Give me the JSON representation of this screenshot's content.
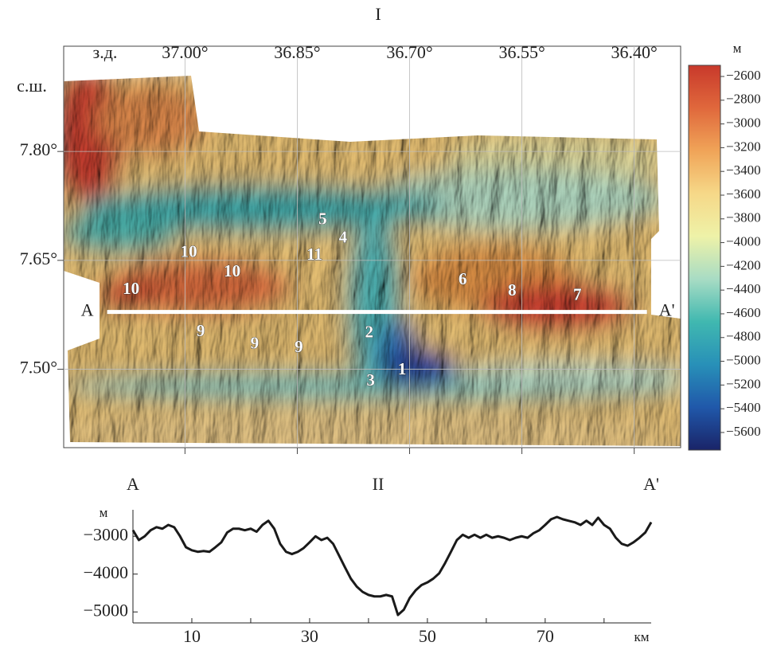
{
  "chart_data": [
    {
      "type": "map",
      "title": "I",
      "xlabel": "з.д.",
      "ylabel": "с.ш.",
      "xlim": [
        37.162,
        36.338
      ],
      "ylim": [
        7.392,
        7.945
      ],
      "grid": true,
      "xticks": [
        {
          "value": 37.0,
          "label": "37.00°"
        },
        {
          "value": 36.85,
          "label": "36.85°"
        },
        {
          "value": 36.7,
          "label": "36.70°"
        },
        {
          "value": 36.55,
          "label": "36.55°"
        },
        {
          "value": 36.4,
          "label": "36.40°"
        }
      ],
      "yticks": [
        {
          "value": 7.8,
          "label": "7.80°"
        },
        {
          "value": 7.65,
          "label": "7.65°"
        },
        {
          "value": 7.5,
          "label": "7.50°"
        }
      ],
      "section": {
        "start_label": "A",
        "end_label": "A'",
        "x": [
          37.104,
          36.383
        ],
        "y": [
          7.579,
          7.579
        ],
        "color": "#ffffff"
      },
      "annotations": [
        {
          "text": "1",
          "x": 36.71,
          "y": 7.498
        },
        {
          "text": "2",
          "x": 36.754,
          "y": 7.549
        },
        {
          "text": "3",
          "x": 36.752,
          "y": 7.483
        },
        {
          "text": "4",
          "x": 36.789,
          "y": 7.68
        },
        {
          "text": "5",
          "x": 36.816,
          "y": 7.705
        },
        {
          "text": "6",
          "x": 36.629,
          "y": 7.622
        },
        {
          "text": "7",
          "x": 36.476,
          "y": 7.601
        },
        {
          "text": "8",
          "x": 36.563,
          "y": 7.607
        },
        {
          "text": "9",
          "x": 36.979,
          "y": 7.551
        },
        {
          "text": "9",
          "x": 36.907,
          "y": 7.534
        },
        {
          "text": "9",
          "x": 36.848,
          "y": 7.529
        },
        {
          "text": "10",
          "x": 37.072,
          "y": 7.609
        },
        {
          "text": "10",
          "x": 36.995,
          "y": 7.66
        },
        {
          "text": "10",
          "x": 36.937,
          "y": 7.633
        },
        {
          "text": "11",
          "x": 36.827,
          "y": 7.656
        }
      ],
      "colorbar": {
        "label": "м",
        "lim": [
          -2506,
          -5748
        ],
        "colors": [
          "#c8392b",
          "#e0683c",
          "#f0a458",
          "#f6d888",
          "#eef2a8",
          "#a8dcc4",
          "#40b8b0",
          "#2890b8",
          "#2058aa",
          "#1a2468"
        ],
        "ticks": [
          {
            "value": -2600,
            "label": "−2600"
          },
          {
            "value": -2800,
            "label": "−2800"
          },
          {
            "value": -3000,
            "label": "−3000"
          },
          {
            "value": -3200,
            "label": "−3200"
          },
          {
            "value": -3400,
            "label": "−3400"
          },
          {
            "value": -3600,
            "label": "−3600"
          },
          {
            "value": -3800,
            "label": "−3800"
          },
          {
            "value": -4000,
            "label": "−4000"
          },
          {
            "value": -4200,
            "label": "−4200"
          },
          {
            "value": -4400,
            "label": "−4400"
          },
          {
            "value": -4600,
            "label": "−4600"
          },
          {
            "value": -4800,
            "label": "−4800"
          },
          {
            "value": -5000,
            "label": "−5000"
          },
          {
            "value": -5200,
            "label": "−5200"
          },
          {
            "value": -5400,
            "label": "−5400"
          },
          {
            "value": -5600,
            "label": "−5600"
          }
        ]
      }
    },
    {
      "type": "line",
      "title": "II",
      "start_label": "A",
      "end_label": "A'",
      "xlabel": "км",
      "ylabel": "м",
      "color": "#1a1a1a",
      "xlim": [
        0,
        88
      ],
      "ylim": [
        -5290,
        -2300
      ],
      "xticks": [
        10,
        30,
        50,
        70
      ],
      "xminor_ticks": [
        20,
        40,
        60,
        80
      ],
      "yticks": [
        {
          "value": -3000,
          "label": "−3000"
        },
        {
          "value": -4000,
          "label": "−4000"
        },
        {
          "value": -5000,
          "label": "−5000"
        }
      ],
      "x": [
        0,
        1,
        2,
        3,
        4,
        5,
        6,
        7,
        8,
        9,
        10,
        11,
        12,
        13,
        14,
        15,
        16,
        17,
        18,
        19,
        20,
        21,
        22,
        23,
        24,
        25,
        26,
        27,
        28,
        29,
        30,
        31,
        32,
        33,
        34,
        35,
        36,
        37,
        38,
        39,
        40,
        41,
        42,
        43,
        44,
        45,
        46,
        47,
        48,
        49,
        50,
        51,
        52,
        53,
        54,
        55,
        56,
        57,
        58,
        59,
        60,
        61,
        62,
        63,
        64,
        65,
        66,
        67,
        68,
        69,
        70,
        71,
        72,
        73,
        74,
        75,
        76,
        77,
        78,
        79,
        80,
        81,
        82,
        83,
        84,
        85,
        86,
        87,
        88
      ],
      "values": [
        -2840,
        -3100,
        -3000,
        -2840,
        -2760,
        -2800,
        -2700,
        -2760,
        -3000,
        -3290,
        -3370,
        -3410,
        -3390,
        -3410,
        -3290,
        -3160,
        -2900,
        -2800,
        -2800,
        -2840,
        -2800,
        -2880,
        -2700,
        -2590,
        -2800,
        -3200,
        -3410,
        -3470,
        -3410,
        -3310,
        -3160,
        -3000,
        -3100,
        -3040,
        -3200,
        -3510,
        -3820,
        -4120,
        -4330,
        -4470,
        -4550,
        -4590,
        -4590,
        -4550,
        -4590,
        -5080,
        -4940,
        -4630,
        -4430,
        -4290,
        -4220,
        -4120,
        -3980,
        -3710,
        -3410,
        -3100,
        -2960,
        -3040,
        -2960,
        -3040,
        -2960,
        -3040,
        -3000,
        -3040,
        -3100,
        -3040,
        -3000,
        -3040,
        -2920,
        -2840,
        -2700,
        -2550,
        -2490,
        -2550,
        -2590,
        -2630,
        -2700,
        -2590,
        -2700,
        -2510,
        -2700,
        -2800,
        -3040,
        -3200,
        -3250,
        -3160,
        -3040,
        -2900,
        -2630
      ]
    }
  ]
}
